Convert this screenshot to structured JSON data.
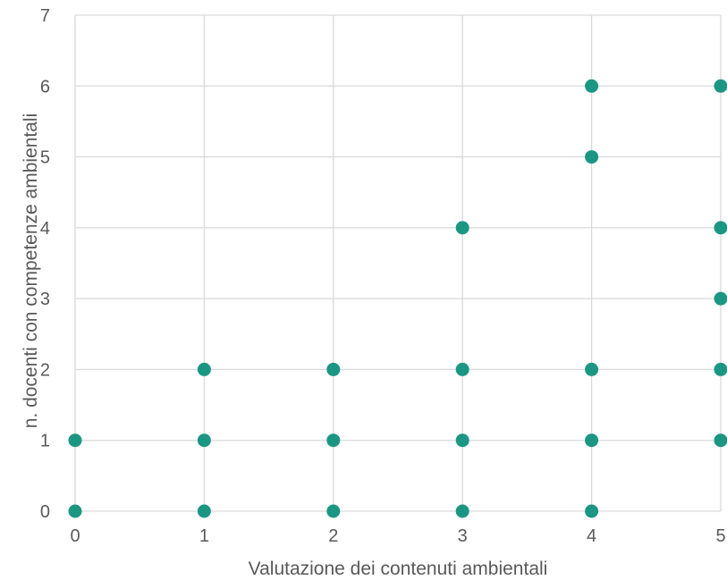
{
  "chart_data": {
    "type": "scatter",
    "title": "",
    "xlabel": "Valutazione dei contenuti ambientali",
    "ylabel": "n. docenti  con competenze ambientali",
    "xlim": [
      0,
      5
    ],
    "ylim": [
      0,
      7
    ],
    "x_ticks": [
      "0",
      "1",
      "2",
      "3",
      "4",
      "5"
    ],
    "y_ticks": [
      "0",
      "1",
      "2",
      "3",
      "4",
      "5",
      "6",
      "7"
    ],
    "grid": true,
    "marker_color": "#1b9683",
    "series": [
      {
        "points": [
          {
            "x": 0,
            "y": 0
          },
          {
            "x": 0,
            "y": 1
          },
          {
            "x": 1,
            "y": 0
          },
          {
            "x": 1,
            "y": 1
          },
          {
            "x": 1,
            "y": 2
          },
          {
            "x": 2,
            "y": 0
          },
          {
            "x": 2,
            "y": 1
          },
          {
            "x": 2,
            "y": 2
          },
          {
            "x": 3,
            "y": 0
          },
          {
            "x": 3,
            "y": 1
          },
          {
            "x": 3,
            "y": 2
          },
          {
            "x": 3,
            "y": 4
          },
          {
            "x": 4,
            "y": 0
          },
          {
            "x": 4,
            "y": 1
          },
          {
            "x": 4,
            "y": 2
          },
          {
            "x": 4,
            "y": 5
          },
          {
            "x": 4,
            "y": 6
          },
          {
            "x": 5,
            "y": 1
          },
          {
            "x": 5,
            "y": 2
          },
          {
            "x": 5,
            "y": 3
          },
          {
            "x": 5,
            "y": 4
          },
          {
            "x": 5,
            "y": 6
          }
        ]
      }
    ]
  }
}
